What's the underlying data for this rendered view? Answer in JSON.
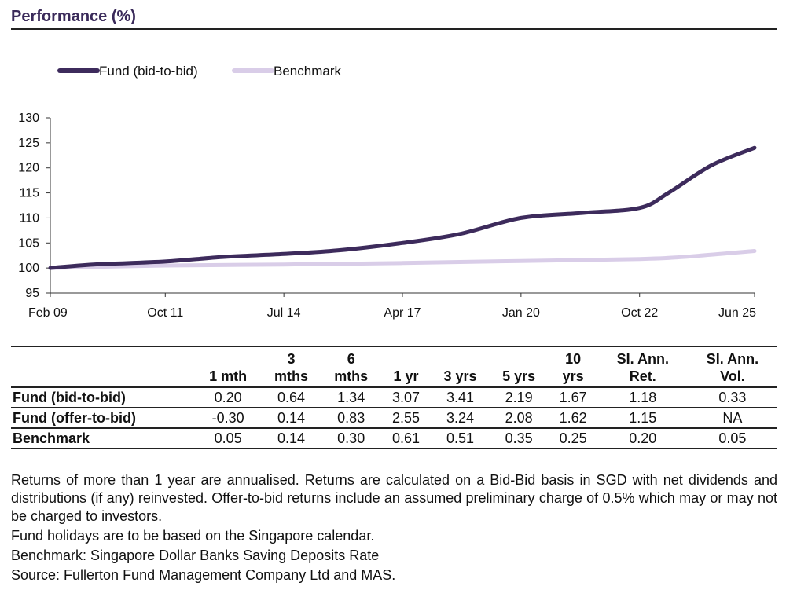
{
  "title": "Performance (%)",
  "chart_data": {
    "type": "line",
    "x_ticks": [
      "Feb 09",
      "Oct 11",
      "Jul 14",
      "Apr 17",
      "Jan 20",
      "Oct 22",
      "Jun 25"
    ],
    "y_ticks": [
      95,
      100,
      105,
      110,
      115,
      120,
      125,
      130
    ],
    "ylim": [
      95,
      130
    ],
    "xlim": [
      "Feb 09",
      "Jun 25"
    ],
    "legend_position": "top-left",
    "series": [
      {
        "name": "Fund (bid-to-bid)",
        "color": "#3d2b5c",
        "points": [
          [
            "2009-02",
            100.0
          ],
          [
            "2010-02",
            100.7
          ],
          [
            "2011-10",
            101.3
          ],
          [
            "2013-02",
            102.2
          ],
          [
            "2014-07",
            102.8
          ],
          [
            "2015-10",
            103.5
          ],
          [
            "2017-04",
            105.0
          ],
          [
            "2018-08",
            106.8
          ],
          [
            "2020-01",
            110.0
          ],
          [
            "2021-06",
            111.0
          ],
          [
            "2022-10",
            112.0
          ],
          [
            "2023-06",
            115.0
          ],
          [
            "2024-06",
            120.5
          ],
          [
            "2025-06",
            124.0
          ]
        ]
      },
      {
        "name": "Benchmark",
        "color": "#d9cde8",
        "points": [
          [
            "2009-02",
            100.0
          ],
          [
            "2011-10",
            100.5
          ],
          [
            "2014-07",
            100.7
          ],
          [
            "2017-04",
            101.0
          ],
          [
            "2020-01",
            101.4
          ],
          [
            "2022-10",
            101.8
          ],
          [
            "2023-10",
            102.2
          ],
          [
            "2025-06",
            103.4
          ]
        ]
      }
    ]
  },
  "table": {
    "headers": [
      "",
      "1 mth",
      "3 mths",
      "6 mths",
      "1 yr",
      "3 yrs",
      "5 yrs",
      "10 yrs",
      "SI. Ann. Ret.",
      "SI. Ann. Vol."
    ],
    "rows": [
      {
        "label": "Fund (bid-to-bid)",
        "values": [
          "0.20",
          "0.64",
          "1.34",
          "3.07",
          "3.41",
          "2.19",
          "1.67",
          "1.18",
          "0.33"
        ]
      },
      {
        "label": "Fund (offer-to-bid)",
        "values": [
          "-0.30",
          "0.14",
          "0.83",
          "2.55",
          "3.24",
          "2.08",
          "1.62",
          "1.15",
          "NA"
        ]
      },
      {
        "label": "Benchmark",
        "values": [
          "0.05",
          "0.14",
          "0.30",
          "0.61",
          "0.51",
          "0.35",
          "0.25",
          "0.20",
          "0.05"
        ]
      }
    ]
  },
  "notes": [
    "Returns of more than 1 year are annualised. Returns are calculated on a Bid-Bid basis in SGD with net dividends and distributions (if any) reinvested. Offer-to-bid returns include an assumed preliminary charge of 0.5% which may or may not be charged to investors.",
    "Fund holidays are to be based on the Singapore calendar.",
    "Benchmark: Singapore Dollar Banks Saving Deposits Rate",
    "Source: Fullerton Fund Management Company Ltd and MAS."
  ]
}
